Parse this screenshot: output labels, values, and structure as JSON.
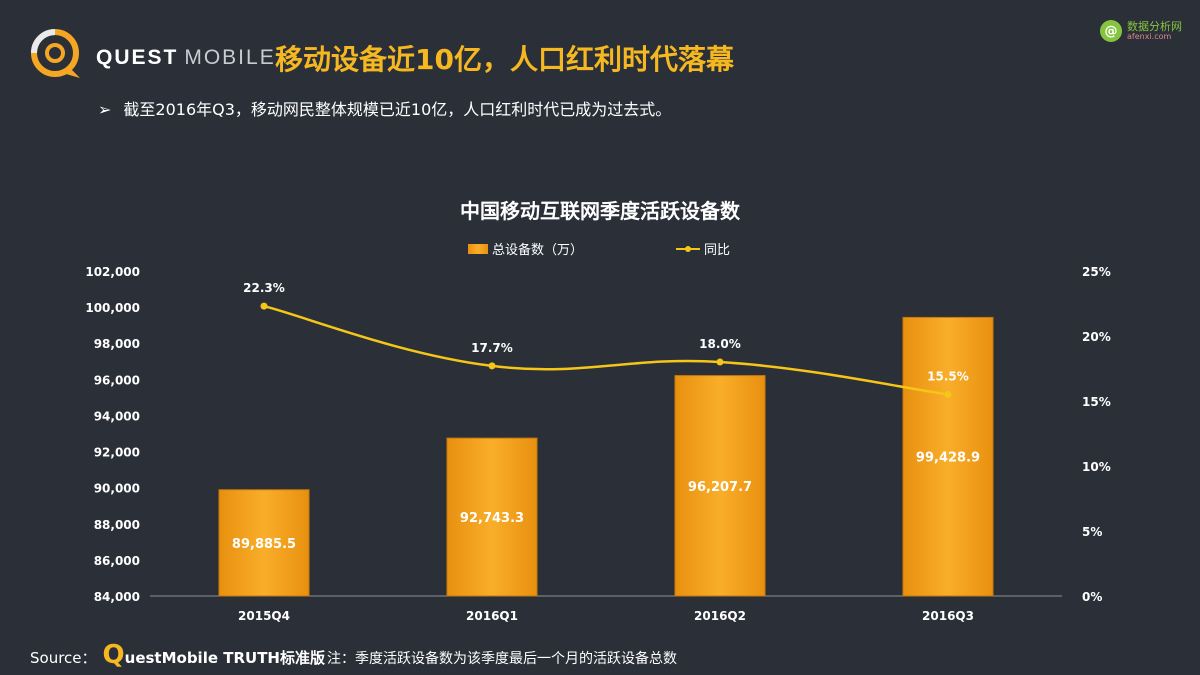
{
  "brand": {
    "name_bold": "QUEST",
    "name_light": "MOBILE"
  },
  "slide_title": "移动设备近10亿，人口红利时代落幕",
  "watermark": {
    "text": "数据分析网",
    "sub": "afenxi.com"
  },
  "bullet": {
    "text": "截至2016年Q3，移动网民整体规模已近10亿，人口红利时代已成为过去式。"
  },
  "footer": {
    "source_label": "Source：",
    "source_q": "Q",
    "source_name": "uestMobile TRUTH标准版",
    "note": "注：季度活跃设备数为该季度最后一个月的活跃设备总数"
  },
  "colors": {
    "bar": "#f7a21c",
    "line": "#f5c518",
    "accent": "#f5b820",
    "background": "#2a2f38"
  },
  "chart_data": {
    "type": "bar",
    "title": "中国移动互联网季度活跃设备数",
    "categories": [
      "2015Q4",
      "2016Q1",
      "2016Q2",
      "2016Q3"
    ],
    "series": [
      {
        "name": "总设备数（万）",
        "type": "bar",
        "axis": "left",
        "values": [
          89885.5,
          92743.3,
          96207.7,
          99428.9
        ],
        "labels": [
          "89,885.5",
          "92,743.3",
          "96,207.7",
          "99,428.9"
        ]
      },
      {
        "name": "同比",
        "type": "line",
        "axis": "right",
        "values": [
          22.3,
          17.7,
          18.0,
          15.5
        ],
        "labels": [
          "22.3%",
          "17.7%",
          "18.0%",
          "15.5%"
        ]
      }
    ],
    "ylim_left": [
      84000,
      102000
    ],
    "yticks_left": [
      "84,000",
      "86,000",
      "88,000",
      "90,000",
      "92,000",
      "94,000",
      "96,000",
      "98,000",
      "100,000",
      "102,000"
    ],
    "ylim_right": [
      0,
      25
    ],
    "yticks_right": [
      "0%",
      "5%",
      "10%",
      "15%",
      "20%",
      "25%"
    ],
    "legend_position": "top",
    "grid": false
  }
}
